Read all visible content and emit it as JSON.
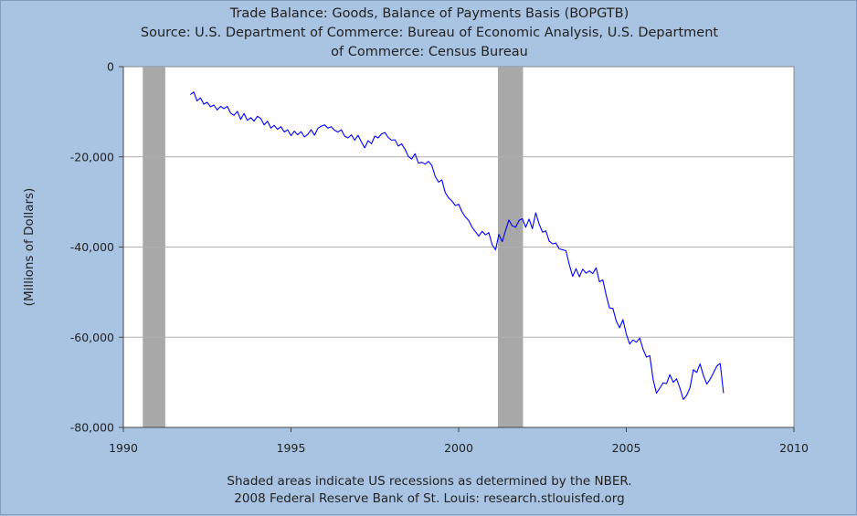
{
  "chart_data": {
    "type": "line",
    "title": "Trade Balance: Goods, Balance of Payments Basis (BOPGTB)",
    "subtitle_lines": [
      "Source: U.S. Department of Commerce: Bureau of Economic Analysis, U.S. Department",
      "of Commerce: Census Bureau"
    ],
    "xlabel": "",
    "ylabel": "(Millions of Dollars)",
    "xlim": [
      1990,
      2010
    ],
    "ylim": [
      -80000,
      0
    ],
    "x_ticks": [
      1990,
      1995,
      2000,
      2005,
      2010
    ],
    "y_ticks": [
      0,
      -20000,
      -40000,
      -60000,
      -80000
    ],
    "x_tick_labels": [
      "1990",
      "1995",
      "2000",
      "2005",
      "2010"
    ],
    "y_tick_labels": [
      "0",
      "-20,000",
      "-40,000",
      "-60,000",
      "-80,000"
    ],
    "grid": true,
    "line_color": "#0000ff",
    "recession_color": "#a8a8a8",
    "recessions": [
      {
        "start": 1990.58,
        "end": 1991.25
      },
      {
        "start": 2001.17,
        "end": 2001.92
      }
    ],
    "series": [
      {
        "values": [
          [
            1992.0,
            -6200
          ],
          [
            1992.1,
            -5600
          ],
          [
            1992.2,
            -7600
          ],
          [
            1992.3,
            -6900
          ],
          [
            1992.4,
            -8300
          ],
          [
            1992.5,
            -7900
          ],
          [
            1992.6,
            -8900
          ],
          [
            1992.7,
            -8500
          ],
          [
            1992.8,
            -9600
          ],
          [
            1992.9,
            -8800
          ],
          [
            1993.0,
            -9300
          ],
          [
            1993.1,
            -8800
          ],
          [
            1993.2,
            -10300
          ],
          [
            1993.3,
            -10800
          ],
          [
            1993.4,
            -9900
          ],
          [
            1993.5,
            -11700
          ],
          [
            1993.6,
            -10400
          ],
          [
            1993.7,
            -11900
          ],
          [
            1993.8,
            -11300
          ],
          [
            1993.9,
            -12100
          ],
          [
            1994.0,
            -11000
          ],
          [
            1994.1,
            -11500
          ],
          [
            1994.2,
            -12900
          ],
          [
            1994.3,
            -12100
          ],
          [
            1994.4,
            -13600
          ],
          [
            1994.5,
            -13000
          ],
          [
            1994.6,
            -13900
          ],
          [
            1994.7,
            -13300
          ],
          [
            1994.8,
            -14500
          ],
          [
            1994.9,
            -14000
          ],
          [
            1995.0,
            -15300
          ],
          [
            1995.1,
            -14300
          ],
          [
            1995.2,
            -15100
          ],
          [
            1995.3,
            -14400
          ],
          [
            1995.4,
            -15600
          ],
          [
            1995.5,
            -15000
          ],
          [
            1995.6,
            -14000
          ],
          [
            1995.7,
            -15200
          ],
          [
            1995.8,
            -13700
          ],
          [
            1995.9,
            -13200
          ],
          [
            1996.0,
            -12900
          ],
          [
            1996.1,
            -13600
          ],
          [
            1996.2,
            -13300
          ],
          [
            1996.3,
            -14100
          ],
          [
            1996.4,
            -14500
          ],
          [
            1996.5,
            -14000
          ],
          [
            1996.6,
            -15400
          ],
          [
            1996.7,
            -15800
          ],
          [
            1996.8,
            -15100
          ],
          [
            1996.9,
            -16300
          ],
          [
            1997.0,
            -15200
          ],
          [
            1997.1,
            -16700
          ],
          [
            1997.2,
            -18000
          ],
          [
            1997.3,
            -16400
          ],
          [
            1997.4,
            -17100
          ],
          [
            1997.5,
            -15400
          ],
          [
            1997.6,
            -15800
          ],
          [
            1997.7,
            -14900
          ],
          [
            1997.8,
            -14600
          ],
          [
            1997.9,
            -15700
          ],
          [
            1998.0,
            -16300
          ],
          [
            1998.1,
            -16200
          ],
          [
            1998.2,
            -17600
          ],
          [
            1998.3,
            -17100
          ],
          [
            1998.4,
            -18300
          ],
          [
            1998.5,
            -19900
          ],
          [
            1998.6,
            -20500
          ],
          [
            1998.7,
            -19300
          ],
          [
            1998.8,
            -21400
          ],
          [
            1998.9,
            -21200
          ],
          [
            1999.0,
            -21600
          ],
          [
            1999.1,
            -21000
          ],
          [
            1999.2,
            -21900
          ],
          [
            1999.3,
            -24300
          ],
          [
            1999.4,
            -25600
          ],
          [
            1999.5,
            -25100
          ],
          [
            1999.6,
            -27900
          ],
          [
            1999.7,
            -29100
          ],
          [
            1999.8,
            -29800
          ],
          [
            1999.9,
            -30800
          ],
          [
            2000.0,
            -30500
          ],
          [
            2000.1,
            -32200
          ],
          [
            2000.2,
            -33300
          ],
          [
            2000.3,
            -34100
          ],
          [
            2000.4,
            -35600
          ],
          [
            2000.5,
            -36600
          ],
          [
            2000.6,
            -37600
          ],
          [
            2000.7,
            -36500
          ],
          [
            2000.8,
            -37300
          ],
          [
            2000.9,
            -36800
          ],
          [
            2001.0,
            -39500
          ],
          [
            2001.1,
            -40600
          ],
          [
            2001.2,
            -37200
          ],
          [
            2001.3,
            -38800
          ],
          [
            2001.4,
            -36300
          ],
          [
            2001.5,
            -34000
          ],
          [
            2001.6,
            -35300
          ],
          [
            2001.7,
            -35600
          ],
          [
            2001.8,
            -34100
          ],
          [
            2001.9,
            -33700
          ],
          [
            2002.0,
            -35600
          ],
          [
            2002.1,
            -33800
          ],
          [
            2002.2,
            -35900
          ],
          [
            2002.3,
            -32400
          ],
          [
            2002.4,
            -34900
          ],
          [
            2002.5,
            -36700
          ],
          [
            2002.6,
            -36400
          ],
          [
            2002.7,
            -38700
          ],
          [
            2002.8,
            -39300
          ],
          [
            2002.9,
            -39100
          ],
          [
            2003.0,
            -40400
          ],
          [
            2003.1,
            -40600
          ],
          [
            2003.2,
            -40800
          ],
          [
            2003.3,
            -43900
          ],
          [
            2003.4,
            -46500
          ],
          [
            2003.5,
            -44800
          ],
          [
            2003.6,
            -46600
          ],
          [
            2003.7,
            -44900
          ],
          [
            2003.8,
            -45800
          ],
          [
            2003.9,
            -45300
          ],
          [
            2004.0,
            -45900
          ],
          [
            2004.1,
            -44600
          ],
          [
            2004.2,
            -47700
          ],
          [
            2004.3,
            -47300
          ],
          [
            2004.4,
            -50700
          ],
          [
            2004.5,
            -53500
          ],
          [
            2004.6,
            -53600
          ],
          [
            2004.7,
            -56400
          ],
          [
            2004.8,
            -57900
          ],
          [
            2004.9,
            -56100
          ],
          [
            2005.0,
            -59300
          ],
          [
            2005.1,
            -61500
          ],
          [
            2005.2,
            -60600
          ],
          [
            2005.3,
            -61100
          ],
          [
            2005.4,
            -60200
          ],
          [
            2005.5,
            -62700
          ],
          [
            2005.6,
            -64400
          ],
          [
            2005.7,
            -64100
          ],
          [
            2005.8,
            -69400
          ],
          [
            2005.9,
            -72400
          ],
          [
            2006.0,
            -71300
          ],
          [
            2006.1,
            -70100
          ],
          [
            2006.2,
            -70300
          ],
          [
            2006.3,
            -68300
          ],
          [
            2006.4,
            -70000
          ],
          [
            2006.5,
            -69200
          ],
          [
            2006.6,
            -71300
          ],
          [
            2006.7,
            -73800
          ],
          [
            2006.8,
            -72900
          ],
          [
            2006.9,
            -71200
          ],
          [
            2007.0,
            -67200
          ],
          [
            2007.1,
            -67800
          ],
          [
            2007.2,
            -65900
          ],
          [
            2007.3,
            -68500
          ],
          [
            2007.4,
            -70400
          ],
          [
            2007.5,
            -69300
          ],
          [
            2007.6,
            -67900
          ],
          [
            2007.7,
            -66400
          ],
          [
            2007.8,
            -65800
          ],
          [
            2007.9,
            -72400
          ]
        ]
      }
    ]
  },
  "footer": {
    "line1": "Shaded areas indicate US recessions as determined by the NBER.",
    "line2": "2008 Federal Reserve Bank of St. Louis: research.stlouisfed.org"
  }
}
